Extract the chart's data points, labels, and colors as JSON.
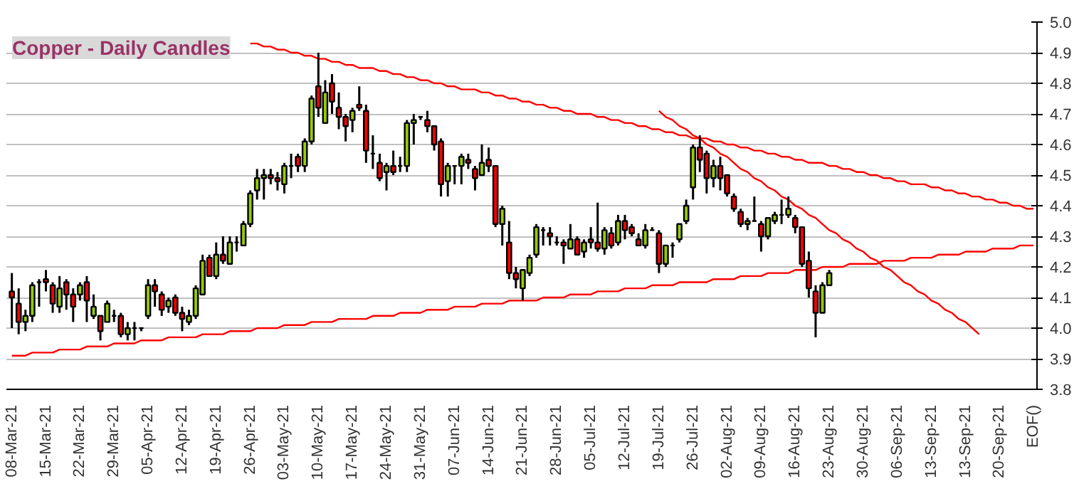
{
  "chart_data": {
    "type": "candlestick",
    "title": "Copper - Daily Candles",
    "grid": "y",
    "categories": [
      "08-Mar-21",
      null,
      null,
      null,
      null,
      "15-Mar-21",
      null,
      null,
      null,
      null,
      "22-Mar-21",
      null,
      null,
      null,
      null,
      "29-Mar-21",
      null,
      null,
      null,
      null,
      "05-Apr-21",
      null,
      null,
      null,
      null,
      "12-Apr-21",
      null,
      null,
      null,
      null,
      "19-Apr-21",
      null,
      null,
      null,
      null,
      "26-Apr-21",
      null,
      null,
      null,
      null,
      "03-May-21",
      null,
      null,
      null,
      null,
      "10-May-21",
      null,
      null,
      null,
      null,
      "17-May-21",
      null,
      null,
      null,
      null,
      "24-May-21",
      null,
      null,
      null,
      null,
      "31-May-21",
      null,
      null,
      null,
      null,
      "07-Jun-21",
      null,
      null,
      null,
      null,
      "14-Jun-21",
      null,
      null,
      null,
      null,
      "21-Jun-21",
      null,
      null,
      null,
      null,
      "28-Jun-21",
      null,
      null,
      null,
      null,
      "05-Jul-21",
      null,
      null,
      null,
      null,
      "12-Jul-21",
      null,
      null,
      null,
      null,
      "19-Jul-21",
      null,
      null,
      null,
      null,
      "26-Jul-21",
      null,
      null,
      null,
      null,
      "02-Aug-21",
      null,
      null,
      null,
      null,
      "09-Aug-21",
      null,
      null,
      null,
      null,
      "16-Aug-21",
      null,
      null,
      null,
      null,
      "23-Aug-21",
      null,
      null,
      null,
      null,
      "30-Aug-21",
      null,
      null,
      null,
      null,
      "06-Sep-21",
      null,
      null,
      null,
      null,
      "13-Sep-21",
      null,
      null,
      null,
      null,
      "13-Sep-21",
      null,
      null,
      null,
      null,
      "20-Sep-21",
      null,
      null,
      null,
      null,
      "EOF()"
    ],
    "ohlc": [
      [
        4.12,
        4.18,
        4.0,
        4.1
      ],
      [
        4.08,
        4.13,
        3.98,
        4.02
      ],
      [
        4.02,
        4.06,
        3.99,
        4.04
      ],
      [
        4.04,
        4.15,
        4.02,
        4.14
      ],
      [
        4.15,
        4.16,
        4.07,
        4.15
      ],
      [
        4.16,
        4.19,
        4.12,
        4.15
      ],
      [
        4.14,
        4.15,
        4.05,
        4.08
      ],
      [
        4.07,
        4.17,
        4.05,
        4.13
      ],
      [
        4.15,
        4.16,
        4.06,
        4.11
      ],
      [
        4.11,
        4.13,
        4.02,
        4.07
      ],
      [
        4.11,
        4.15,
        4.09,
        4.14
      ],
      [
        4.15,
        4.17,
        4.02,
        4.09
      ],
      [
        4.04,
        4.11,
        4.03,
        4.07
      ],
      [
        4.04,
        4.04,
        3.96,
        3.99
      ],
      [
        4.02,
        4.09,
        4.02,
        4.08
      ],
      [
        4.04,
        4.06,
        4.02,
        4.04
      ],
      [
        4.04,
        4.05,
        3.97,
        3.98
      ],
      [
        3.98,
        4.02,
        3.96,
        4.0
      ],
      [
        4.0,
        4.02,
        3.96,
        4.0
      ],
      [
        4.0,
        4.0,
        3.99,
        4.0
      ],
      [
        4.04,
        4.16,
        4.03,
        4.14
      ],
      [
        4.14,
        4.16,
        4.07,
        4.12
      ],
      [
        4.11,
        4.12,
        4.04,
        4.06
      ],
      [
        4.07,
        4.1,
        4.05,
        4.09
      ],
      [
        4.1,
        4.11,
        4.04,
        4.05
      ],
      [
        4.05,
        4.07,
        3.99,
        4.03
      ],
      [
        4.02,
        4.06,
        4.01,
        4.04
      ],
      [
        4.04,
        4.14,
        4.03,
        4.13
      ],
      [
        4.11,
        4.24,
        4.11,
        4.22
      ],
      [
        4.23,
        4.24,
        4.17,
        4.17
      ],
      [
        4.17,
        4.28,
        4.16,
        4.24
      ],
      [
        4.24,
        4.3,
        4.21,
        4.22
      ],
      [
        4.21,
        4.3,
        4.21,
        4.28
      ],
      [
        4.28,
        4.3,
        4.25,
        4.28
      ],
      [
        4.27,
        4.35,
        4.27,
        4.34
      ],
      [
        4.34,
        4.45,
        4.33,
        4.44
      ],
      [
        4.45,
        4.52,
        4.42,
        4.49
      ],
      [
        4.49,
        4.52,
        4.42,
        4.5
      ],
      [
        4.5,
        4.52,
        4.47,
        4.49
      ],
      [
        4.49,
        4.51,
        4.45,
        4.48
      ],
      [
        4.47,
        4.54,
        4.44,
        4.53
      ],
      [
        4.53,
        4.57,
        4.49,
        4.53
      ],
      [
        4.56,
        4.57,
        4.51,
        4.53
      ],
      [
        4.53,
        4.62,
        4.51,
        4.61
      ],
      [
        4.61,
        4.76,
        4.6,
        4.75
      ],
      [
        4.79,
        4.9,
        4.69,
        4.72
      ],
      [
        4.67,
        4.81,
        4.67,
        4.77
      ],
      [
        4.8,
        4.83,
        4.7,
        4.74
      ],
      [
        4.72,
        4.77,
        4.65,
        4.69
      ],
      [
        4.69,
        4.7,
        4.61,
        4.66
      ],
      [
        4.68,
        4.72,
        4.64,
        4.71
      ],
      [
        4.73,
        4.79,
        4.71,
        4.72
      ],
      [
        4.71,
        4.73,
        4.54,
        4.58
      ],
      [
        4.57,
        4.63,
        4.52,
        4.57
      ],
      [
        4.54,
        4.57,
        4.48,
        4.49
      ],
      [
        4.51,
        4.54,
        4.45,
        4.53
      ],
      [
        4.53,
        4.58,
        4.5,
        4.51
      ],
      [
        4.53,
        4.56,
        4.51,
        4.53
      ],
      [
        4.53,
        4.68,
        4.51,
        4.67
      ],
      [
        4.67,
        4.7,
        4.6,
        4.68
      ],
      [
        4.69,
        4.69,
        4.68,
        4.69
      ],
      [
        4.68,
        4.71,
        4.64,
        4.66
      ],
      [
        4.66,
        4.66,
        4.58,
        4.6
      ],
      [
        4.61,
        4.62,
        4.43,
        4.47
      ],
      [
        4.48,
        4.54,
        4.43,
        4.53
      ],
      [
        4.53,
        4.53,
        4.47,
        4.53
      ],
      [
        4.53,
        4.57,
        4.47,
        4.56
      ],
      [
        4.55,
        4.57,
        4.52,
        4.54
      ],
      [
        4.52,
        4.53,
        4.45,
        4.49
      ],
      [
        4.5,
        4.6,
        4.5,
        4.54
      ],
      [
        4.55,
        4.59,
        4.51,
        4.53
      ],
      [
        4.53,
        4.53,
        4.33,
        4.34
      ],
      [
        4.34,
        4.4,
        4.27,
        4.39
      ],
      [
        4.28,
        4.35,
        4.16,
        4.18
      ],
      [
        4.18,
        4.2,
        4.13,
        4.16
      ],
      [
        4.13,
        4.19,
        4.09,
        4.19
      ],
      [
        4.18,
        4.24,
        4.17,
        4.23
      ],
      [
        4.24,
        4.34,
        4.23,
        4.33
      ],
      [
        4.32,
        4.33,
        4.27,
        4.32
      ],
      [
        4.31,
        4.33,
        4.27,
        4.3
      ],
      [
        4.28,
        4.3,
        4.27,
        4.28
      ],
      [
        4.28,
        4.29,
        4.21,
        4.27
      ],
      [
        4.26,
        4.34,
        4.26,
        4.29
      ],
      [
        4.29,
        4.3,
        4.24,
        4.24
      ],
      [
        4.25,
        4.29,
        4.23,
        4.28
      ],
      [
        4.29,
        4.33,
        4.26,
        4.28
      ],
      [
        4.28,
        4.41,
        4.25,
        4.26
      ],
      [
        4.26,
        4.33,
        4.24,
        4.32
      ],
      [
        4.31,
        4.33,
        4.26,
        4.27
      ],
      [
        4.28,
        4.37,
        4.27,
        4.35
      ],
      [
        4.35,
        4.37,
        4.29,
        4.32
      ],
      [
        4.33,
        4.34,
        4.3,
        4.31
      ],
      [
        4.29,
        4.31,
        4.27,
        4.27
      ],
      [
        4.27,
        4.34,
        4.26,
        4.32
      ],
      [
        4.32,
        4.33,
        4.32,
        4.32
      ],
      [
        4.31,
        4.32,
        4.18,
        4.21
      ],
      [
        4.21,
        4.27,
        4.2,
        4.27
      ],
      [
        4.27,
        4.28,
        4.23,
        4.27
      ],
      [
        4.29,
        4.34,
        4.28,
        4.34
      ],
      [
        4.35,
        4.42,
        4.34,
        4.4
      ],
      [
        4.46,
        4.6,
        4.42,
        4.59
      ],
      [
        4.59,
        4.63,
        4.51,
        4.55
      ],
      [
        4.57,
        4.58,
        4.44,
        4.49
      ],
      [
        4.49,
        4.55,
        4.46,
        4.53
      ],
      [
        4.53,
        4.56,
        4.45,
        4.49
      ],
      [
        4.5,
        4.5,
        4.43,
        4.44
      ],
      [
        4.43,
        4.44,
        4.38,
        4.39
      ],
      [
        4.38,
        4.39,
        4.33,
        4.34
      ],
      [
        4.34,
        4.36,
        4.32,
        4.35
      ],
      [
        4.35,
        4.43,
        4.35,
        4.35
      ],
      [
        4.34,
        4.35,
        4.25,
        4.3
      ],
      [
        4.3,
        4.36,
        4.29,
        4.36
      ],
      [
        4.35,
        4.38,
        4.34,
        4.37
      ],
      [
        4.37,
        4.42,
        4.34,
        4.37
      ],
      [
        4.37,
        4.43,
        4.36,
        4.39
      ],
      [
        4.36,
        4.37,
        4.31,
        4.33
      ],
      [
        4.33,
        4.33,
        4.2,
        4.21
      ],
      [
        4.22,
        4.25,
        4.1,
        4.13
      ],
      [
        4.12,
        4.14,
        3.97,
        4.05
      ],
      [
        4.05,
        4.15,
        4.05,
        4.14
      ],
      [
        4.14,
        4.19,
        4.14,
        4.18
      ],
      null,
      null,
      null,
      null,
      null,
      null,
      null,
      null,
      null,
      null,
      null,
      null,
      null,
      null,
      null,
      null,
      null,
      null,
      null,
      null,
      null,
      null,
      null,
      null,
      null,
      null,
      null,
      null,
      null,
      null
    ],
    "colors": [
      "#ff0000",
      "#ff0000",
      "#99cc00",
      "#99cc00",
      "#000000",
      "#ff0000",
      "#ff0000",
      "#99cc00",
      "#ff0000",
      "#ff0000",
      "#99cc00",
      "#ff0000",
      "#99cc00",
      "#ff0000",
      "#99cc00",
      "#000000",
      "#ff0000",
      "#99cc00",
      "#000000",
      "#000000",
      "#99cc00",
      "#ff0000",
      "#ff0000",
      "#99cc00",
      "#ff0000",
      "#ff0000",
      "#99cc00",
      "#99cc00",
      "#99cc00",
      "#ff0000",
      "#99cc00",
      "#ff0000",
      "#99cc00",
      "#000000",
      "#99cc00",
      "#99cc00",
      "#99cc00",
      "#99cc00",
      "#ff0000",
      "#ff0000",
      "#99cc00",
      "#000000",
      "#ff0000",
      "#99cc00",
      "#99cc00",
      "#ff0000",
      "#99cc00",
      "#ff0000",
      "#ff0000",
      "#ff0000",
      "#99cc00",
      "#ff0000",
      "#ff0000",
      "#000000",
      "#ff0000",
      "#99cc00",
      "#ff0000",
      "#000000",
      "#99cc00",
      "#99cc00",
      "#000000",
      "#ff0000",
      "#ff0000",
      "#ff0000",
      "#99cc00",
      "#000000",
      "#99cc00",
      "#ff0000",
      "#ff0000",
      "#99cc00",
      "#ff0000",
      "#ff0000",
      "#99cc00",
      "#ff0000",
      "#ff0000",
      "#99cc00",
      "#99cc00",
      "#99cc00",
      "#000000",
      "#ff0000",
      "#000000",
      "#ff0000",
      "#99cc00",
      "#ff0000",
      "#99cc00",
      "#ff0000",
      "#ff0000",
      "#99cc00",
      "#ff0000",
      "#99cc00",
      "#ff0000",
      "#ff0000",
      "#ff0000",
      "#99cc00",
      "#000000",
      "#ff0000",
      "#99cc00",
      "#000000",
      "#99cc00",
      "#99cc00",
      "#99cc00",
      "#ff0000",
      "#ff0000",
      "#99cc00",
      "#ff0000",
      "#ff0000",
      "#ff0000",
      "#ff0000",
      "#99cc00",
      "#000000",
      "#ff0000",
      "#99cc00",
      "#99cc00",
      "#000000",
      "#99cc00",
      "#ff0000",
      "#ff0000",
      "#ff0000",
      "#ff0000",
      "#99cc00",
      "#99cc00",
      null,
      null,
      null,
      null,
      null,
      null,
      null,
      null,
      null,
      null,
      null,
      null,
      null,
      null,
      null,
      null,
      null,
      null,
      null,
      null,
      null,
      null,
      null,
      null,
      null,
      null,
      null,
      null,
      null,
      null
    ],
    "series": [
      {
        "type": "line",
        "color": "#ff0000",
        "values": [
          null,
          null,
          null,
          null,
          null,
          null,
          null,
          null,
          null,
          null,
          null,
          null,
          null,
          null,
          null,
          null,
          null,
          null,
          null,
          null,
          null,
          null,
          null,
          null,
          null,
          null,
          null,
          null,
          null,
          null,
          null,
          null,
          null,
          null,
          null,
          4.93,
          4.93,
          4.92,
          4.92,
          4.91,
          4.91,
          4.9,
          4.9,
          4.89,
          4.89,
          4.88,
          4.88,
          4.87,
          4.87,
          4.86,
          4.86,
          4.85,
          4.85,
          4.85,
          4.84,
          4.84,
          4.83,
          4.83,
          4.82,
          4.82,
          4.81,
          4.81,
          4.8,
          4.8,
          4.79,
          4.79,
          4.78,
          4.78,
          4.78,
          4.77,
          4.77,
          4.76,
          4.76,
          4.75,
          4.75,
          4.74,
          4.74,
          4.73,
          4.73,
          4.72,
          4.72,
          4.71,
          4.71,
          4.7,
          4.7,
          4.7,
          4.69,
          4.69,
          4.68,
          4.68,
          4.67,
          4.67,
          4.66,
          4.66,
          4.65,
          4.65,
          4.64,
          4.64,
          4.63,
          4.63,
          4.62,
          4.62,
          4.62,
          4.61,
          4.61,
          4.6,
          4.6,
          4.59,
          4.59,
          4.58,
          4.58,
          4.57,
          4.57,
          4.56,
          4.56,
          4.55,
          4.55,
          4.54,
          4.54,
          4.54,
          4.53,
          4.53,
          4.52,
          4.52,
          4.51,
          4.51,
          4.5,
          4.5,
          4.49,
          4.49,
          4.48,
          4.48,
          4.47,
          4.47,
          4.47,
          4.46,
          4.46,
          4.45,
          4.45,
          4.44,
          4.44,
          4.43,
          4.43,
          4.42,
          4.42,
          4.41,
          4.41,
          4.4,
          4.4,
          4.39,
          4.39
        ]
      },
      {
        "type": "line",
        "color": "#ff0000",
        "values": [
          3.91,
          3.91,
          3.91,
          3.92,
          3.92,
          3.92,
          3.92,
          3.93,
          3.93,
          3.93,
          3.93,
          3.94,
          3.94,
          3.94,
          3.94,
          3.95,
          3.95,
          3.95,
          3.95,
          3.96,
          3.96,
          3.96,
          3.96,
          3.97,
          3.97,
          3.97,
          3.97,
          3.97,
          3.98,
          3.98,
          3.98,
          3.98,
          3.99,
          3.99,
          3.99,
          3.99,
          4.0,
          4.0,
          4.0,
          4.0,
          4.01,
          4.01,
          4.01,
          4.01,
          4.02,
          4.02,
          4.02,
          4.02,
          4.03,
          4.03,
          4.03,
          4.03,
          4.03,
          4.04,
          4.04,
          4.04,
          4.04,
          4.05,
          4.05,
          4.05,
          4.05,
          4.06,
          4.06,
          4.06,
          4.06,
          4.07,
          4.07,
          4.07,
          4.07,
          4.08,
          4.08,
          4.08,
          4.08,
          4.09,
          4.09,
          4.09,
          4.09,
          4.09,
          4.1,
          4.1,
          4.1,
          4.1,
          4.11,
          4.11,
          4.11,
          4.11,
          4.12,
          4.12,
          4.12,
          4.12,
          4.13,
          4.13,
          4.13,
          4.13,
          4.14,
          4.14,
          4.14,
          4.14,
          4.15,
          4.15,
          4.15,
          4.15,
          4.15,
          4.16,
          4.16,
          4.16,
          4.16,
          4.17,
          4.17,
          4.17,
          4.17,
          4.18,
          4.18,
          4.18,
          4.18,
          4.19,
          4.19,
          4.19,
          4.19,
          4.2,
          4.2,
          4.2,
          4.2,
          4.21,
          4.21,
          4.21,
          4.21,
          4.21,
          4.22,
          4.22,
          4.22,
          4.22,
          4.23,
          4.23,
          4.23,
          4.23,
          4.24,
          4.24,
          4.24,
          4.24,
          4.25,
          4.25,
          4.25,
          4.25,
          4.26,
          4.26,
          4.26,
          4.26,
          4.27,
          4.27,
          4.27
        ]
      },
      {
        "type": "line",
        "color": "#ff0000",
        "values": [
          null,
          null,
          null,
          null,
          null,
          null,
          null,
          null,
          null,
          null,
          null,
          null,
          null,
          null,
          null,
          null,
          null,
          null,
          null,
          null,
          null,
          null,
          null,
          null,
          null,
          null,
          null,
          null,
          null,
          null,
          null,
          null,
          null,
          null,
          null,
          null,
          null,
          null,
          null,
          null,
          null,
          null,
          null,
          null,
          null,
          null,
          null,
          null,
          null,
          null,
          null,
          null,
          null,
          null,
          null,
          null,
          null,
          null,
          null,
          null,
          null,
          null,
          null,
          null,
          null,
          null,
          null,
          null,
          null,
          null,
          null,
          null,
          null,
          null,
          null,
          null,
          null,
          null,
          null,
          null,
          null,
          null,
          null,
          null,
          null,
          null,
          null,
          null,
          null,
          null,
          null,
          null,
          null,
          null,
          null,
          4.71,
          4.69,
          4.68,
          4.66,
          4.65,
          4.63,
          4.62,
          4.6,
          4.59,
          4.57,
          4.56,
          4.54,
          4.52,
          4.51,
          4.49,
          4.48,
          4.46,
          4.45,
          4.43,
          4.42,
          4.4,
          4.39,
          4.37,
          4.36,
          4.34,
          4.32,
          4.31,
          4.29,
          4.28,
          4.26,
          4.25,
          4.23,
          4.22,
          4.2,
          4.19,
          4.17,
          4.15,
          4.14,
          4.12,
          4.11,
          4.09,
          4.08,
          4.06,
          4.05,
          4.03,
          4.02,
          4.0,
          3.98,
          null,
          null,
          null,
          null,
          null,
          null,
          null,
          null
        ]
      }
    ],
    "ylim": [
      3.8,
      5.0
    ],
    "yticks": [
      {
        "value": 3.8,
        "label": "3.8"
      },
      {
        "value": 3.9,
        "label": "3.9"
      },
      {
        "value": 4.0,
        "label": "4.0"
      },
      {
        "value": 4.1,
        "label": "4.1"
      },
      {
        "value": 4.2,
        "label": "4.2"
      },
      {
        "value": 4.3,
        "label": "4.3"
      },
      {
        "value": 4.4,
        "label": "4.4"
      },
      {
        "value": 4.5,
        "label": "4.5"
      },
      {
        "value": 4.6,
        "label": "4.6"
      },
      {
        "value": 4.7,
        "label": "4.7"
      },
      {
        "value": 4.8,
        "label": "4.8"
      },
      {
        "value": 4.9,
        "label": "4.9"
      },
      {
        "value": 5.0,
        "label": "5.0"
      }
    ]
  }
}
